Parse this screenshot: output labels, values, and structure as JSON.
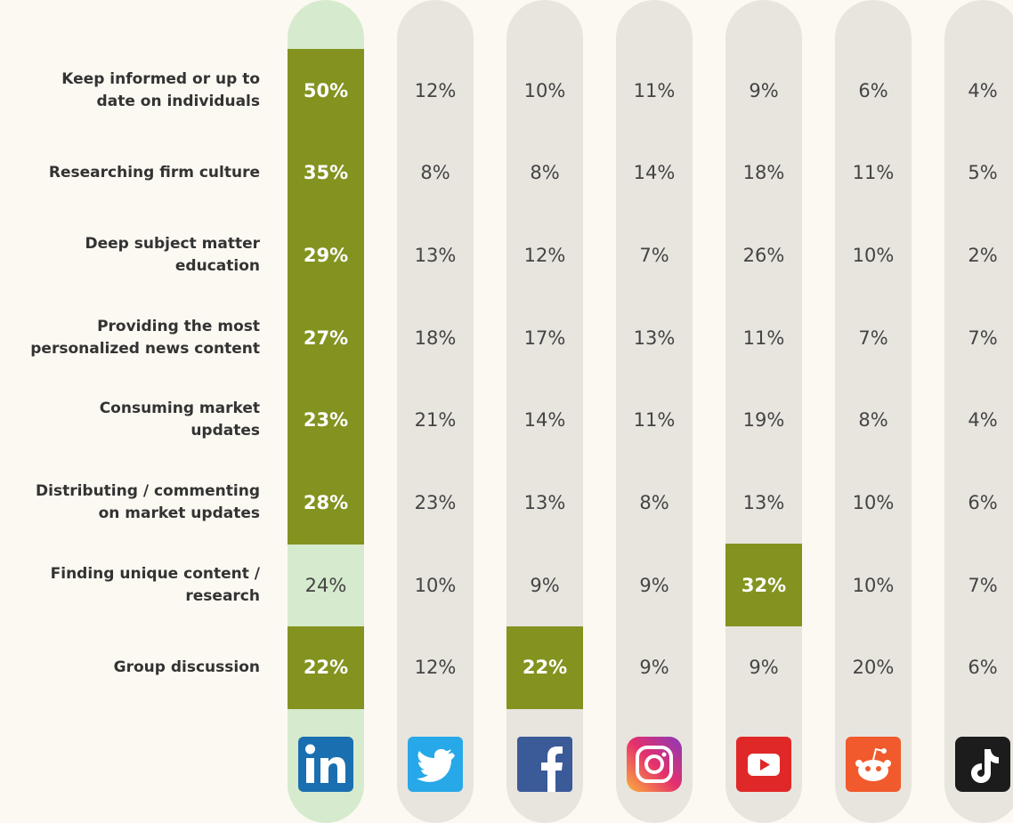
{
  "table": {
    "rows": [
      {
        "label": "Keep informed or up to date on individuals",
        "cells": [
          "50%",
          "12%",
          "10%",
          "11%",
          "9%",
          "6%",
          "4%"
        ]
      },
      {
        "label": "Researching firm culture",
        "cells": [
          "35%",
          "8%",
          "8%",
          "14%",
          "18%",
          "11%",
          "5%"
        ]
      },
      {
        "label": "Deep subject matter education",
        "cells": [
          "29%",
          "13%",
          "12%",
          "7%",
          "26%",
          "10%",
          "2%"
        ]
      },
      {
        "label": "Providing the most personalized news content",
        "cells": [
          "27%",
          "18%",
          "17%",
          "13%",
          "11%",
          "7%",
          "7%"
        ]
      },
      {
        "label": "Consuming market updates",
        "cells": [
          "23%",
          "21%",
          "14%",
          "11%",
          "19%",
          "8%",
          "4%"
        ]
      },
      {
        "label": "Distributing / commenting on market updates",
        "cells": [
          "28%",
          "23%",
          "13%",
          "8%",
          "13%",
          "10%",
          "6%"
        ]
      },
      {
        "label": "Finding unique content / research",
        "cells": [
          "24%",
          "10%",
          "9%",
          "9%",
          "32%",
          "10%",
          "7%"
        ]
      },
      {
        "label": "Group discussion",
        "cells": [
          "22%",
          "12%",
          "22%",
          "9%",
          "9%",
          "20%",
          "6%"
        ]
      }
    ],
    "highlight": [
      [
        0,
        0
      ],
      [
        1,
        0
      ],
      [
        2,
        0
      ],
      [
        3,
        0
      ],
      [
        4,
        0
      ],
      [
        5,
        0
      ],
      [
        6,
        4
      ],
      [
        7,
        0
      ],
      [
        7,
        2
      ]
    ],
    "highlight_color": "#84921f",
    "column_colors": [
      "#d6ebcd",
      "#e8e5df",
      "#e8e5df",
      "#e8e5df",
      "#e8e5df",
      "#e8e5df",
      "#e8e5df"
    ]
  }
}
